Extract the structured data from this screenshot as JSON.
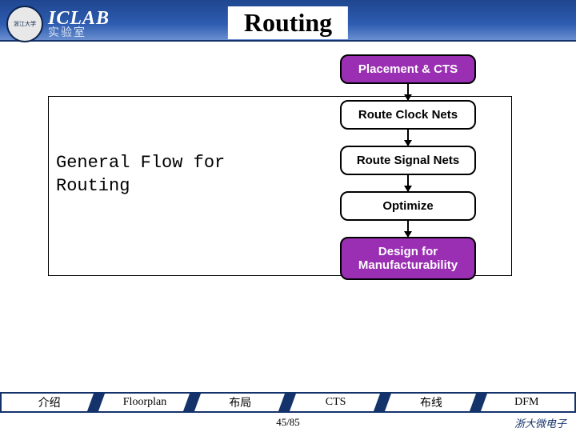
{
  "header": {
    "lab_logo_main": "ICLAB",
    "lab_logo_sub": "实验室",
    "seal_text": "浙江大学"
  },
  "title": "Routing",
  "flow_label_line1": "General Flow for",
  "flow_label_line2": "Routing",
  "flowchart": {
    "type": "flowchart",
    "node_border_radius": 10,
    "node_border_color": "#000000",
    "node_font": "Arial bold 15px",
    "arrow_color": "#000000",
    "purple_fill": "#9a2fb3",
    "purple_text": "#ffffff",
    "white_fill": "#ffffff",
    "white_text": "#000000",
    "nodes": [
      {
        "id": "n1",
        "label": "Placement & CTS",
        "style": "purple"
      },
      {
        "id": "n2",
        "label": "Route Clock Nets",
        "style": "white"
      },
      {
        "id": "n3",
        "label": "Route Signal Nets",
        "style": "white"
      },
      {
        "id": "n4",
        "label": "Optimize",
        "style": "white"
      },
      {
        "id": "n5",
        "label": "Design for\nManufacturability",
        "style": "purple"
      }
    ],
    "edges": [
      [
        "n1",
        "n2"
      ],
      [
        "n2",
        "n3"
      ],
      [
        "n3",
        "n4"
      ],
      [
        "n4",
        "n5"
      ]
    ]
  },
  "tabs": {
    "t1": "介绍",
    "t2": "Floorplan",
    "t3": "布局",
    "t4": "CTS",
    "t5": "布线",
    "t6": "DFM"
  },
  "page_number": "45/85",
  "department": "浙大微电子",
  "colors": {
    "header_gradient_top": "#1f4690",
    "header_gradient_bot": "#6a8fd0",
    "nav_border": "#15336b",
    "background": "#ffffff"
  }
}
